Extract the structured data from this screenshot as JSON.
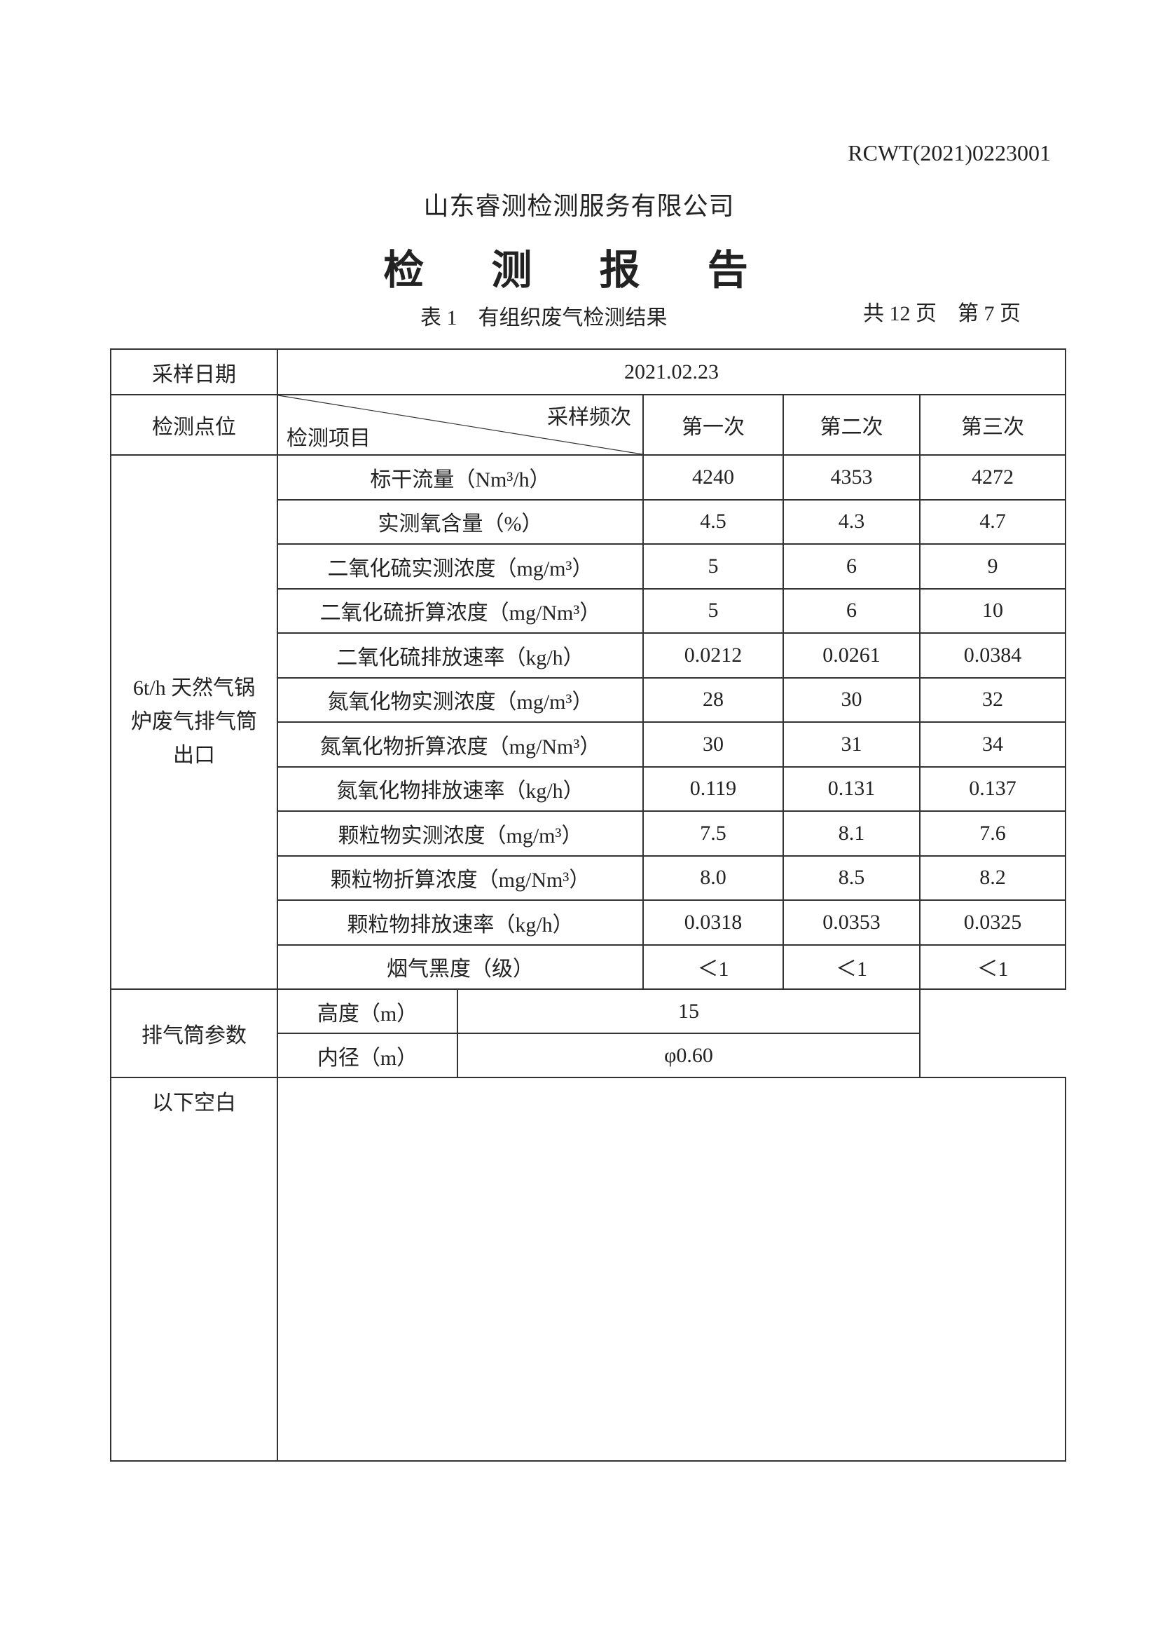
{
  "report_no": "RCWT(2021)0223001",
  "company": "山东睿测检测服务有限公司",
  "title": "检 测 报 告",
  "subtitle": "表 1　有组织废气检测结果",
  "pages": "共 12 页　第 7 页",
  "table": {
    "date_label": "采样日期",
    "date_value": "2021.02.23",
    "point_label": "检测点位",
    "freq_label": "采样频次",
    "item_label": "检测项目",
    "runs": [
      "第一次",
      "第二次",
      "第三次"
    ],
    "point_name": "6t/h 天然气锅炉废气排气筒出口",
    "rows": [
      {
        "item": "标干流量（Nm³/h）",
        "values": [
          "4240",
          "4353",
          "4272"
        ]
      },
      {
        "item": "实测氧含量（%）",
        "values": [
          "4.5",
          "4.3",
          "4.7"
        ]
      },
      {
        "item": "二氧化硫实测浓度（mg/m³）",
        "values": [
          "5",
          "6",
          "9"
        ]
      },
      {
        "item": "二氧化硫折算浓度（mg/Nm³）",
        "values": [
          "5",
          "6",
          "10"
        ]
      },
      {
        "item": "二氧化硫排放速率（kg/h）",
        "values": [
          "0.0212",
          "0.0261",
          "0.0384"
        ]
      },
      {
        "item": "氮氧化物实测浓度（mg/m³）",
        "values": [
          "28",
          "30",
          "32"
        ]
      },
      {
        "item": "氮氧化物折算浓度（mg/Nm³）",
        "values": [
          "30",
          "31",
          "34"
        ]
      },
      {
        "item": "氮氧化物排放速率（kg/h）",
        "values": [
          "0.119",
          "0.131",
          "0.137"
        ]
      },
      {
        "item": "颗粒物实测浓度（mg/m³）",
        "values": [
          "7.5",
          "8.1",
          "7.6"
        ]
      },
      {
        "item": "颗粒物折算浓度（mg/Nm³）",
        "values": [
          "8.0",
          "8.5",
          "8.2"
        ]
      },
      {
        "item": "颗粒物排放速率（kg/h）",
        "values": [
          "0.0318",
          "0.0353",
          "0.0325"
        ]
      },
      {
        "item": "烟气黑度（级）",
        "values": [
          "＜1",
          "＜1",
          "＜1"
        ]
      }
    ],
    "stack": {
      "label": "排气筒参数",
      "height_label": "高度（m）",
      "height_value": "15",
      "diameter_label": "内径（m）",
      "diameter_value": "φ0.60"
    },
    "blank_label": "以下空白"
  }
}
